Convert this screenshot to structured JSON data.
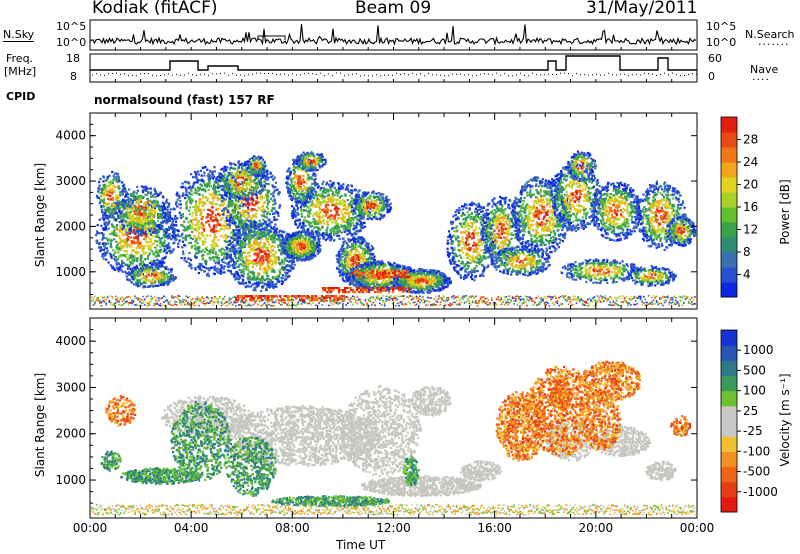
{
  "header": {
    "station": "Kodiak (fitACF)",
    "beam": "Beam 09",
    "date": "31/May/2011"
  },
  "top_strip": {
    "left_label": "N.Sky",
    "right_label": "N.Search",
    "left_ticks": [
      "10^5",
      "10^0"
    ],
    "right_ticks": [
      "10^5",
      "10^0"
    ]
  },
  "freq_strip": {
    "left_label_line1": "Freq.",
    "left_label_line2": "[MHz]",
    "right_label": "Nave",
    "left_ticks": [
      "18",
      "8"
    ],
    "right_ticks": [
      "60",
      "0"
    ]
  },
  "cpid": {
    "label": "CPID",
    "program": "normalsound (fast) 157 RF"
  },
  "chart_data": [
    {
      "type": "heatmap",
      "name": "power",
      "ylabel": "Slant Range [km]",
      "ylim": [
        180,
        4500
      ],
      "yticks": [
        "4000",
        "3000",
        "2000",
        "1000"
      ],
      "xlim": [
        0,
        24
      ],
      "colorbar": {
        "label": "Power [dB]",
        "ticks": [
          "28",
          "24",
          "20",
          "16",
          "12",
          "8",
          "4"
        ],
        "colors": [
          "#0a28e6",
          "#2a4fd0",
          "#3a6fb0",
          "#2e8c74",
          "#3aa04a",
          "#62bf2e",
          "#a8d22a",
          "#e3d21e",
          "#f2a51a",
          "#f07814",
          "#ea4a12",
          "#e11e10"
        ]
      }
    },
    {
      "type": "heatmap",
      "name": "velocity",
      "ylabel": "Slant Range [km]",
      "ylim": [
        180,
        4500
      ],
      "yticks": [
        "4000",
        "3000",
        "2000",
        "1000"
      ],
      "xlim": [
        0,
        24
      ],
      "colorbar": {
        "label": "Velocity [m s⁻¹]",
        "ticks": [
          "1000",
          "500",
          "100",
          "25",
          "-25",
          "-100",
          "-500",
          "-1000"
        ],
        "colors": [
          "#1632d2",
          "#2a54b4",
          "#2f7a8a",
          "#3a9a5a",
          "#6cc230",
          "#c8c8c8",
          "#c8c8c8",
          "#f0c030",
          "#f09020",
          "#f06418",
          "#e83c14",
          "#e01a10"
        ]
      }
    }
  ],
  "xaxis": {
    "label": "Time UT",
    "ticks": [
      "00:00",
      "04:00",
      "08:00",
      "12:00",
      "16:00",
      "20:00",
      "00:00"
    ]
  }
}
